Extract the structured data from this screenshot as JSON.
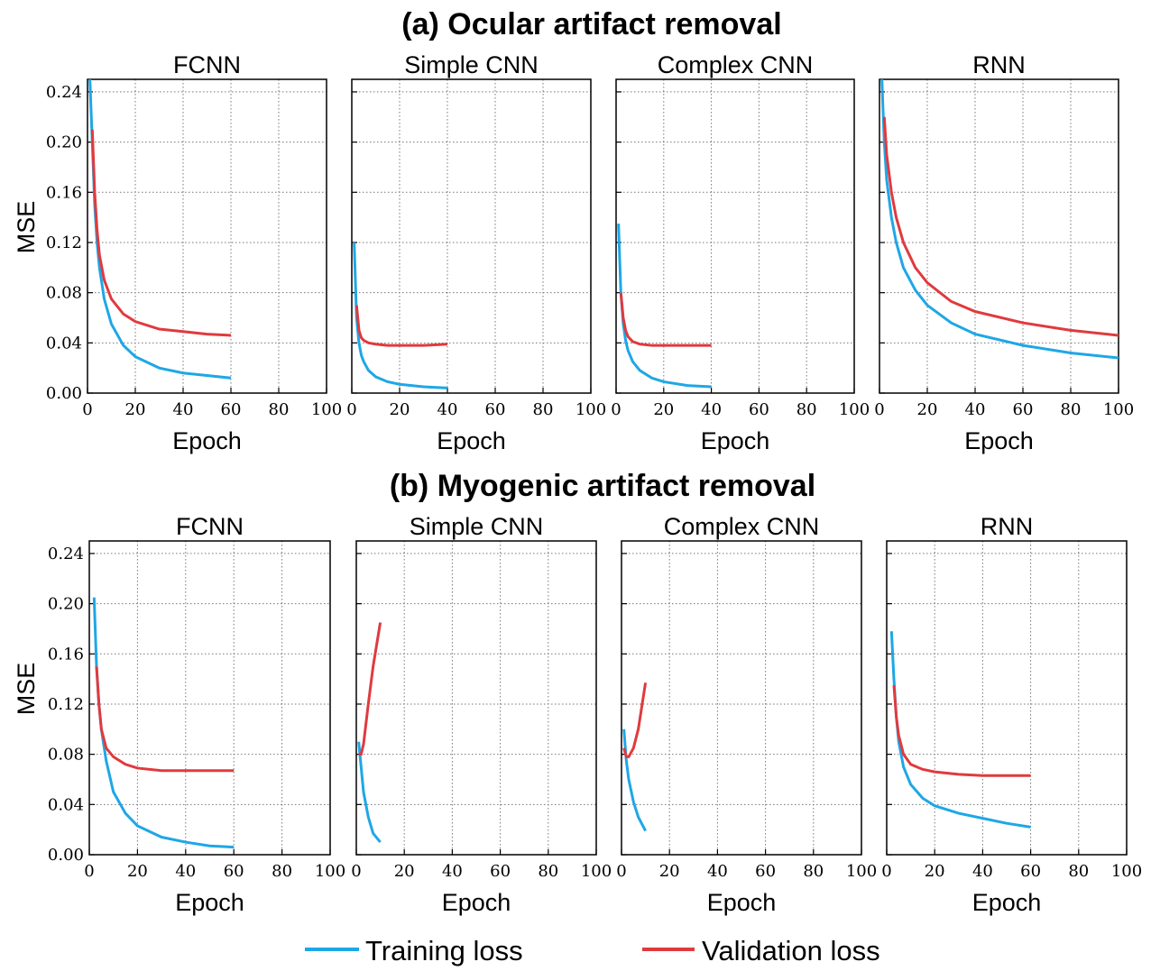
{
  "section_titles": [
    "(a) Ocular artifact removal",
    "(b) Myogenic artifact removal"
  ],
  "chart_data": [
    {
      "type": "line",
      "title": "FCNN",
      "xlabel": "Epoch",
      "ylabel": "MSE",
      "xlim": [
        0,
        100
      ],
      "ylim": [
        0,
        0.25
      ],
      "xticks": [
        0,
        20,
        40,
        60,
        80,
        100
      ],
      "yticks": [
        {
          "value": 0,
          "label": "0.00"
        },
        {
          "value": 0.04,
          "label": "0.04"
        },
        {
          "value": 0.08,
          "label": "0.08"
        },
        {
          "value": 0.12,
          "label": "0.12"
        },
        {
          "value": 0.16,
          "label": "0.16"
        },
        {
          "value": 0.2,
          "label": "0.20"
        },
        {
          "value": 0.24,
          "label": "0.24"
        }
      ],
      "grid": true,
      "series": [
        {
          "name": "Training loss",
          "color": "#1ea7e6",
          "x": [
            1,
            2,
            3,
            4,
            5,
            7,
            10,
            15,
            20,
            30,
            40,
            50,
            60
          ],
          "values": [
            0.25,
            0.2,
            0.15,
            0.12,
            0.1,
            0.075,
            0.055,
            0.038,
            0.029,
            0.02,
            0.016,
            0.014,
            0.012
          ]
        },
        {
          "name": "Validation loss",
          "color": "#e03a3e",
          "x": [
            2,
            3,
            4,
            5,
            7,
            10,
            15,
            20,
            30,
            40,
            50,
            60
          ],
          "values": [
            0.21,
            0.16,
            0.13,
            0.11,
            0.09,
            0.075,
            0.063,
            0.057,
            0.051,
            0.049,
            0.047,
            0.046
          ]
        }
      ]
    },
    {
      "type": "line",
      "title": "Simple CNN",
      "xlabel": "Epoch",
      "xlim": [
        0,
        100
      ],
      "ylim": [
        0,
        0.25
      ],
      "xticks": [
        0,
        20,
        40,
        60,
        80,
        100
      ],
      "yticks": [
        0,
        0.04,
        0.08,
        0.12,
        0.16,
        0.2,
        0.24
      ],
      "grid": true,
      "series": [
        {
          "name": "Training loss",
          "color": "#1ea7e6",
          "x": [
            1,
            2,
            3,
            4,
            5,
            7,
            10,
            15,
            20,
            30,
            40
          ],
          "values": [
            0.12,
            0.06,
            0.04,
            0.03,
            0.025,
            0.018,
            0.013,
            0.009,
            0.007,
            0.005,
            0.004
          ]
        },
        {
          "name": "Validation loss",
          "color": "#e03a3e",
          "x": [
            2,
            3,
            4,
            5,
            7,
            10,
            15,
            20,
            30,
            40
          ],
          "values": [
            0.07,
            0.05,
            0.044,
            0.042,
            0.04,
            0.039,
            0.038,
            0.038,
            0.038,
            0.039
          ]
        }
      ]
    },
    {
      "type": "line",
      "title": "Complex CNN",
      "xlabel": "Epoch",
      "xlim": [
        0,
        100
      ],
      "ylim": [
        0,
        0.25
      ],
      "xticks": [
        0,
        20,
        40,
        60,
        80,
        100
      ],
      "yticks": [
        0,
        0.04,
        0.08,
        0.12,
        0.16,
        0.2,
        0.24
      ],
      "grid": true,
      "series": [
        {
          "name": "Training loss",
          "color": "#1ea7e6",
          "x": [
            1,
            2,
            3,
            4,
            5,
            7,
            10,
            15,
            20,
            30,
            40
          ],
          "values": [
            0.135,
            0.08,
            0.055,
            0.042,
            0.034,
            0.025,
            0.018,
            0.012,
            0.009,
            0.006,
            0.005
          ]
        },
        {
          "name": "Validation loss",
          "color": "#e03a3e",
          "x": [
            2,
            3,
            4,
            5,
            7,
            10,
            15,
            20,
            30,
            40
          ],
          "values": [
            0.08,
            0.06,
            0.05,
            0.045,
            0.041,
            0.039,
            0.038,
            0.038,
            0.038,
            0.038
          ]
        }
      ]
    },
    {
      "type": "line",
      "title": "RNN",
      "xlabel": "Epoch",
      "xlim": [
        0,
        100
      ],
      "ylim": [
        0,
        0.25
      ],
      "xticks": [
        0,
        20,
        40,
        60,
        80,
        100
      ],
      "yticks": [
        0,
        0.04,
        0.08,
        0.12,
        0.16,
        0.2,
        0.24
      ],
      "grid": true,
      "series": [
        {
          "name": "Training loss",
          "color": "#1ea7e6",
          "x": [
            1,
            2,
            3,
            5,
            7,
            10,
            15,
            20,
            30,
            40,
            60,
            80,
            100
          ],
          "values": [
            0.25,
            0.2,
            0.17,
            0.14,
            0.12,
            0.1,
            0.082,
            0.07,
            0.056,
            0.047,
            0.038,
            0.032,
            0.028
          ]
        },
        {
          "name": "Validation loss",
          "color": "#e03a3e",
          "x": [
            2,
            3,
            5,
            7,
            10,
            15,
            20,
            30,
            40,
            60,
            80,
            100
          ],
          "values": [
            0.22,
            0.19,
            0.16,
            0.14,
            0.12,
            0.1,
            0.088,
            0.073,
            0.065,
            0.056,
            0.05,
            0.046
          ]
        }
      ]
    },
    {
      "type": "line",
      "title": "FCNN",
      "xlabel": "Epoch",
      "ylabel": "MSE",
      "xlim": [
        0,
        100
      ],
      "ylim": [
        0,
        0.25
      ],
      "xticks": [
        0,
        20,
        40,
        60,
        80,
        100
      ],
      "yticks": [
        {
          "value": 0,
          "label": "0.00"
        },
        {
          "value": 0.04,
          "label": "0.04"
        },
        {
          "value": 0.08,
          "label": "0.08"
        },
        {
          "value": 0.12,
          "label": "0.12"
        },
        {
          "value": 0.16,
          "label": "0.16"
        },
        {
          "value": 0.2,
          "label": "0.20"
        },
        {
          "value": 0.24,
          "label": "0.24"
        }
      ],
      "grid": true,
      "series": [
        {
          "name": "Training loss",
          "color": "#1ea7e6",
          "x": [
            2,
            3,
            4,
            5,
            7,
            10,
            15,
            20,
            30,
            40,
            50,
            60
          ],
          "values": [
            0.205,
            0.15,
            0.12,
            0.1,
            0.075,
            0.05,
            0.033,
            0.023,
            0.014,
            0.01,
            0.007,
            0.006
          ]
        },
        {
          "name": "Validation loss",
          "color": "#e03a3e",
          "x": [
            3,
            4,
            5,
            7,
            10,
            15,
            20,
            30,
            40,
            50,
            60
          ],
          "values": [
            0.15,
            0.12,
            0.1,
            0.085,
            0.078,
            0.072,
            0.069,
            0.067,
            0.067,
            0.067,
            0.067
          ]
        }
      ]
    },
    {
      "type": "line",
      "title": "Simple CNN",
      "xlabel": "Epoch",
      "xlim": [
        0,
        100
      ],
      "ylim": [
        0,
        0.25
      ],
      "xticks": [
        0,
        20,
        40,
        60,
        80,
        100
      ],
      "yticks": [
        0,
        0.04,
        0.08,
        0.12,
        0.16,
        0.2,
        0.24
      ],
      "grid": true,
      "series": [
        {
          "name": "Training loss",
          "color": "#1ea7e6",
          "x": [
            1,
            2,
            3,
            5,
            7,
            10
          ],
          "values": [
            0.09,
            0.07,
            0.05,
            0.03,
            0.017,
            0.01
          ]
        },
        {
          "name": "Validation loss",
          "color": "#e03a3e",
          "x": [
            1,
            2,
            3,
            5,
            7,
            10
          ],
          "values": [
            0.08,
            0.08,
            0.088,
            0.12,
            0.15,
            0.185
          ]
        }
      ]
    },
    {
      "type": "line",
      "title": "Complex CNN",
      "xlabel": "Epoch",
      "xlim": [
        0,
        100
      ],
      "ylim": [
        0,
        0.25
      ],
      "xticks": [
        0,
        20,
        40,
        60,
        80,
        100
      ],
      "yticks": [
        0,
        0.04,
        0.08,
        0.12,
        0.16,
        0.2,
        0.24
      ],
      "grid": true,
      "series": [
        {
          "name": "Training loss",
          "color": "#1ea7e6",
          "x": [
            1,
            2,
            3,
            5,
            7,
            10
          ],
          "values": [
            0.1,
            0.075,
            0.06,
            0.042,
            0.03,
            0.019
          ]
        },
        {
          "name": "Validation loss",
          "color": "#e03a3e",
          "x": [
            1,
            2,
            3,
            5,
            7,
            10
          ],
          "values": [
            0.085,
            0.078,
            0.078,
            0.085,
            0.1,
            0.137
          ]
        }
      ]
    },
    {
      "type": "line",
      "title": "RNN",
      "xlabel": "Epoch",
      "xlim": [
        0,
        100
      ],
      "ylim": [
        0,
        0.25
      ],
      "xticks": [
        0,
        20,
        40,
        60,
        80,
        100
      ],
      "yticks": [
        0,
        0.04,
        0.08,
        0.12,
        0.16,
        0.2,
        0.24
      ],
      "grid": true,
      "series": [
        {
          "name": "Training loss",
          "color": "#1ea7e6",
          "x": [
            2,
            3,
            4,
            5,
            7,
            10,
            15,
            20,
            30,
            40,
            50,
            60
          ],
          "values": [
            0.178,
            0.14,
            0.11,
            0.09,
            0.07,
            0.056,
            0.045,
            0.039,
            0.033,
            0.029,
            0.025,
            0.022
          ]
        },
        {
          "name": "Validation loss",
          "color": "#e03a3e",
          "x": [
            3,
            4,
            5,
            7,
            10,
            15,
            20,
            30,
            40,
            50,
            60
          ],
          "values": [
            0.135,
            0.11,
            0.095,
            0.08,
            0.072,
            0.068,
            0.066,
            0.064,
            0.063,
            0.063,
            0.063
          ]
        }
      ]
    }
  ]
}
